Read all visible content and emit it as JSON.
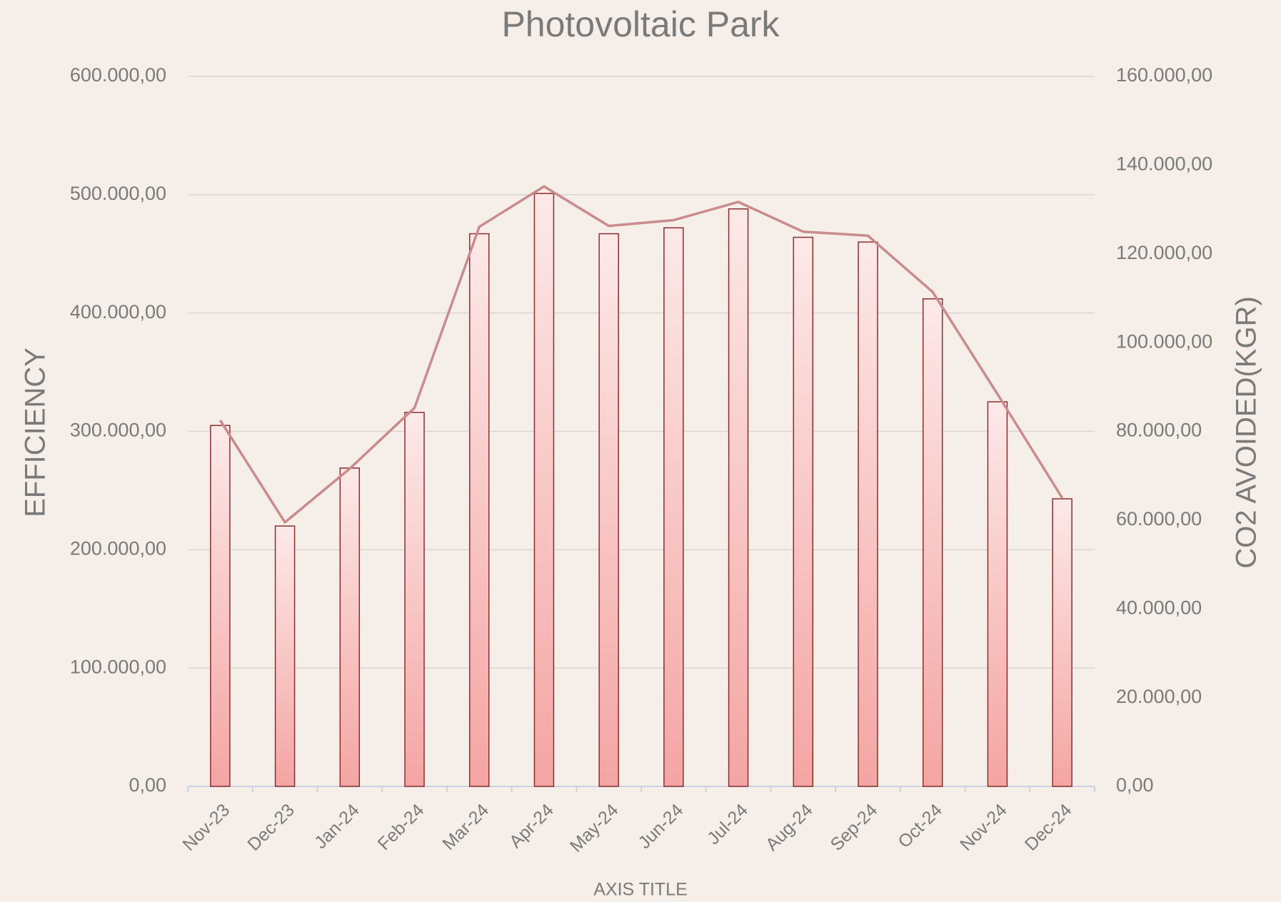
{
  "chart_data": {
    "type": "bar-line",
    "title": "Photovoltaic Park",
    "xlabel": "AXIS TITLE",
    "ylabel": "EFFICIENCY",
    "y2label": "CO2 AVOIDED(KGR)",
    "categories": [
      "Nov-23",
      "Dec-23",
      "Jan-24",
      "Feb-24",
      "Mar-24",
      "Apr-24",
      "May-24",
      "Jun-24",
      "Jul-24",
      "Aug-24",
      "Sep-24",
      "Oct-24",
      "Nov-24",
      "Dec-24"
    ],
    "series": [
      {
        "type": "bar",
        "color": "#f4a5a3",
        "values": [
          305000,
          220000,
          269000,
          316000,
          467000,
          501000,
          467000,
          472000,
          488000,
          464000,
          460000,
          412000,
          325000,
          243000
        ]
      },
      {
        "type": "line",
        "axis": "y2",
        "color": "#c98b8b",
        "values": [
          82500,
          59500,
          71600,
          85300,
          126100,
          135200,
          126300,
          127600,
          131700,
          125000,
          124100,
          111400,
          88400,
          65000
        ]
      }
    ],
    "ylim": [
      0,
      600000
    ],
    "yticks": [
      {
        "value": 0,
        "label": "0,00"
      },
      {
        "value": 100000,
        "label": "100.000,00"
      },
      {
        "value": 200000,
        "label": "200.000,00"
      },
      {
        "value": 300000,
        "label": "300.000,00"
      },
      {
        "value": 400000,
        "label": "400.000,00"
      },
      {
        "value": 500000,
        "label": "500.000,00"
      },
      {
        "value": 600000,
        "label": "600.000,00"
      }
    ],
    "y2lim": [
      0,
      160000
    ],
    "y2ticks": [
      {
        "value": 0,
        "label": "0,00"
      },
      {
        "value": 20000,
        "label": "20.000,00"
      },
      {
        "value": 40000,
        "label": "40.000,00"
      },
      {
        "value": 60000,
        "label": "60.000,00"
      },
      {
        "value": 80000,
        "label": "80.000,00"
      },
      {
        "value": 100000,
        "label": "100.000,00"
      },
      {
        "value": 120000,
        "label": "120.000,00"
      },
      {
        "value": 140000,
        "label": "140.000,00"
      },
      {
        "value": 160000,
        "label": "160.000,00"
      }
    ],
    "grid": true
  }
}
